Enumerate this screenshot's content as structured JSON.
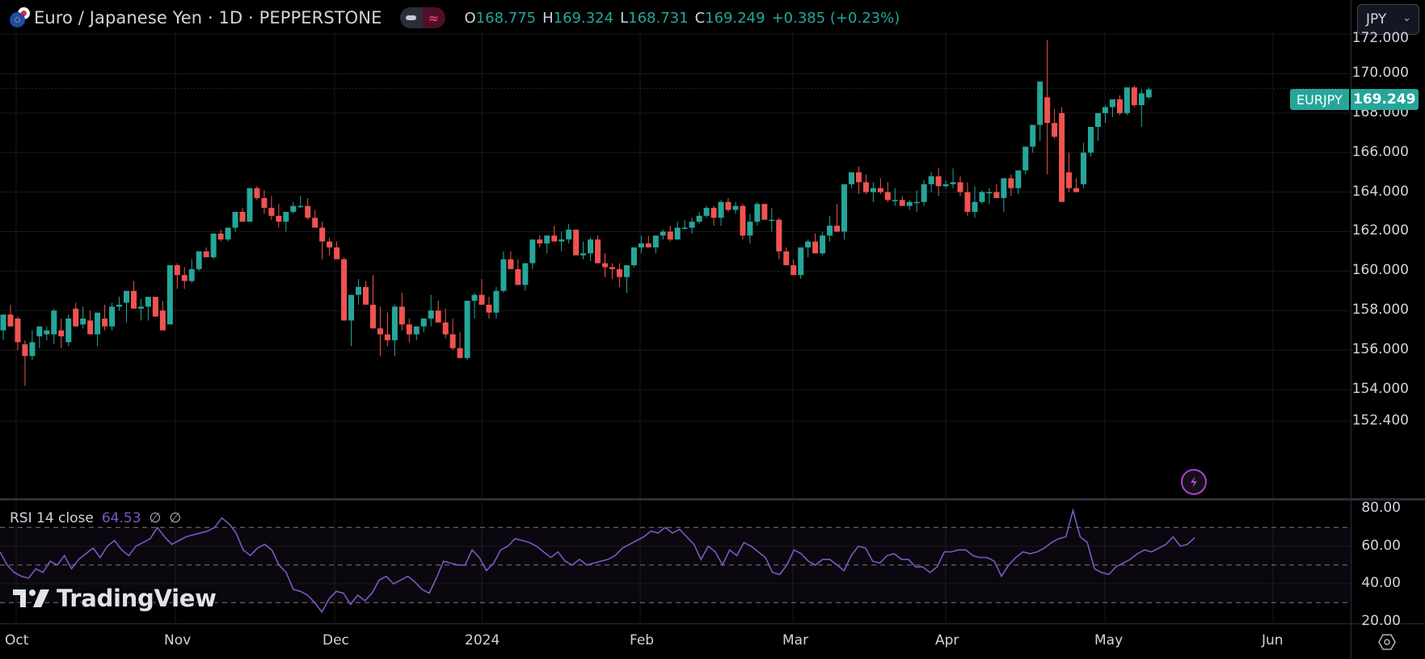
{
  "header": {
    "symbol_title": "Euro / Japanese Yen · 1D · PEPPERSTONE",
    "symbol_icon": "eur-jpy-flags-icon",
    "ohlc": {
      "open_key": "O",
      "open": "168.775",
      "high_key": "H",
      "high": "169.324",
      "low_key": "L",
      "low": "168.731",
      "close_key": "C",
      "close": "169.249",
      "change": "+0.385 (+0.23%)"
    }
  },
  "currency_selector": {
    "value": "JPY"
  },
  "last_price_tag": {
    "symbol": "EURJPY",
    "price": "169.249"
  },
  "price_axis": {
    "labels": [
      "172.000",
      "170.000",
      "168.000",
      "166.000",
      "164.000",
      "162.000",
      "160.000",
      "158.000",
      "156.000",
      "154.000",
      "152.400"
    ]
  },
  "rsi": {
    "label": "RSI 14 close",
    "value": "64.53",
    "null_a": "∅",
    "null_b": "∅",
    "axis_labels": [
      "80.00",
      "60.00",
      "40.00",
      "20.00"
    ],
    "upper_band": 70,
    "middle_band": 50,
    "lower_band": 30
  },
  "time_axis": {
    "labels": [
      "Oct",
      "Nov",
      "Dec",
      "2024",
      "Feb",
      "Mar",
      "Apr",
      "May",
      "Jun"
    ]
  },
  "watermark": {
    "text": "TradingView"
  },
  "colors": {
    "up": "#26a69a",
    "down": "#ef5350",
    "rsi_line": "#7e57c2",
    "background": "#000000",
    "grid": "#1a1a1a"
  },
  "chart_data": [
    {
      "type": "candlestick",
      "title": "Euro / Japanese Yen · 1D · PEPPERSTONE",
      "xlabel": "",
      "ylabel": "JPY",
      "ylim": [
        151.8,
        172.5
      ],
      "x_ticks": [
        "Oct",
        "Nov",
        "Dec",
        "2024",
        "Feb",
        "Mar",
        "Apr",
        "May",
        "Jun"
      ],
      "y_ticks": [
        152.4,
        154,
        156,
        158,
        160,
        162,
        164,
        166,
        168,
        170,
        172
      ],
      "grid": true,
      "ohlc": [
        [
          157.0,
          157.6,
          156.5,
          157.8
        ],
        [
          157.8,
          158.3,
          157.3,
          157.2
        ],
        [
          157.6,
          157.7,
          156.0,
          156.4
        ],
        [
          156.3,
          156.5,
          154.2,
          155.7
        ],
        [
          155.7,
          157.0,
          155.5,
          156.4
        ],
        [
          156.7,
          157.2,
          156.1,
          157.2
        ],
        [
          156.8,
          157.2,
          156.5,
          157.0
        ],
        [
          156.8,
          158.1,
          156.3,
          158.0
        ],
        [
          157.0,
          157.6,
          156.1,
          156.7
        ],
        [
          156.4,
          157.8,
          156.2,
          157.6
        ],
        [
          158.1,
          158.4,
          157.9,
          157.2
        ],
        [
          157.3,
          158.2,
          157.1,
          157.6
        ],
        [
          157.5,
          158.0,
          157.1,
          156.8
        ],
        [
          156.8,
          157.8,
          156.2,
          157.9
        ],
        [
          157.6,
          158.3,
          157.0,
          157.2
        ],
        [
          157.2,
          158.4,
          157.0,
          158.2
        ],
        [
          158.2,
          158.7,
          158.0,
          158.3
        ],
        [
          158.4,
          158.7,
          157.4,
          159.0
        ],
        [
          159.0,
          159.5,
          158.6,
          158.1
        ],
        [
          158.1,
          158.6,
          157.5,
          158.2
        ],
        [
          158.2,
          158.5,
          157.5,
          158.7
        ],
        [
          158.7,
          158.7,
          157.9,
          157.7
        ],
        [
          158.0,
          158.5,
          157.4,
          157.0
        ],
        [
          157.3,
          159.0,
          157.3,
          160.3
        ],
        [
          160.3,
          160.4,
          159.1,
          159.8
        ],
        [
          159.8,
          160.2,
          159.1,
          159.5
        ],
        [
          159.5,
          160.6,
          159.4,
          160.1
        ],
        [
          160.1,
          161.0,
          160.0,
          161.0
        ],
        [
          161.0,
          161.2,
          160.9,
          160.7
        ],
        [
          160.7,
          161.8,
          160.6,
          161.9
        ],
        [
          161.9,
          162.1,
          161.5,
          161.6
        ],
        [
          161.6,
          162.2,
          161.5,
          162.2
        ],
        [
          162.2,
          162.6,
          162.0,
          163.0
        ],
        [
          163.0,
          163.2,
          162.6,
          162.5
        ],
        [
          162.5,
          163.8,
          162.5,
          164.2
        ],
        [
          164.2,
          164.3,
          163.6,
          163.7
        ],
        [
          163.7,
          164.1,
          162.9,
          163.2
        ],
        [
          163.2,
          163.8,
          162.6,
          162.8
        ],
        [
          162.8,
          163.4,
          162.2,
          162.5
        ],
        [
          162.5,
          162.9,
          162.0,
          163.0
        ],
        [
          163.0,
          163.5,
          162.9,
          163.3
        ],
        [
          163.3,
          163.8,
          163.2,
          163.3
        ],
        [
          163.3,
          163.7,
          162.6,
          162.7
        ],
        [
          162.7,
          163.1,
          162.4,
          162.2
        ],
        [
          162.2,
          162.5,
          160.6,
          161.5
        ],
        [
          161.5,
          161.7,
          160.8,
          161.2
        ],
        [
          161.2,
          161.5,
          160.6,
          160.6
        ],
        [
          160.6,
          160.7,
          157.5,
          157.5
        ],
        [
          157.5,
          158.6,
          156.2,
          158.8
        ],
        [
          158.8,
          159.6,
          158.3,
          159.2
        ],
        [
          159.2,
          159.5,
          158.3,
          158.3
        ],
        [
          158.3,
          159.8,
          157.7,
          157.1
        ],
        [
          157.1,
          158.2,
          155.7,
          156.8
        ],
        [
          156.8,
          157.9,
          156.2,
          156.5
        ],
        [
          156.5,
          158.3,
          155.7,
          158.2
        ],
        [
          158.2,
          158.9,
          157.0,
          157.3
        ],
        [
          157.3,
          157.6,
          156.4,
          156.8
        ],
        [
          156.8,
          157.0,
          156.5,
          157.2
        ],
        [
          157.2,
          157.5,
          156.9,
          157.6
        ],
        [
          157.6,
          158.8,
          157.2,
          158.0
        ],
        [
          158.0,
          158.5,
          157.6,
          157.4
        ],
        [
          157.4,
          158.1,
          156.6,
          156.8
        ],
        [
          156.8,
          157.6,
          156.0,
          156.1
        ],
        [
          156.1,
          156.9,
          155.6,
          155.6
        ],
        [
          155.6,
          157.1,
          155.5,
          158.5
        ],
        [
          158.5,
          158.9,
          157.6,
          158.8
        ],
        [
          158.8,
          159.6,
          158.5,
          158.3
        ],
        [
          158.3,
          158.7,
          157.6,
          157.9
        ],
        [
          157.9,
          159.2,
          157.6,
          159.0
        ],
        [
          159.0,
          161.0,
          158.9,
          160.6
        ],
        [
          160.6,
          161.0,
          160.3,
          160.1
        ],
        [
          160.1,
          160.6,
          159.6,
          159.3
        ],
        [
          159.3,
          160.3,
          159.0,
          160.4
        ],
        [
          160.4,
          161.3,
          160.1,
          161.6
        ],
        [
          161.6,
          161.8,
          161.2,
          161.4
        ],
        [
          161.4,
          161.8,
          160.9,
          161.8
        ],
        [
          161.8,
          162.3,
          161.5,
          161.5
        ],
        [
          161.5,
          162.0,
          161.0,
          161.6
        ],
        [
          161.6,
          162.4,
          161.4,
          162.1
        ],
        [
          162.1,
          162.1,
          160.9,
          160.8
        ],
        [
          160.8,
          161.5,
          160.6,
          160.9
        ],
        [
          160.9,
          161.7,
          160.5,
          161.6
        ],
        [
          161.6,
          161.8,
          160.7,
          160.4
        ],
        [
          160.4,
          160.9,
          159.7,
          160.2
        ],
        [
          160.2,
          160.4,
          159.6,
          160.1
        ],
        [
          160.1,
          160.4,
          159.2,
          159.7
        ],
        [
          159.7,
          160.3,
          158.9,
          160.3
        ],
        [
          160.3,
          161.0,
          160.2,
          161.2
        ],
        [
          161.2,
          161.8,
          160.9,
          161.4
        ],
        [
          161.4,
          161.8,
          161.2,
          161.2
        ],
        [
          161.2,
          161.7,
          160.9,
          161.8
        ],
        [
          161.8,
          162.1,
          161.6,
          162.0
        ],
        [
          162.0,
          162.3,
          161.5,
          161.6
        ],
        [
          161.6,
          162.5,
          161.6,
          162.2
        ],
        [
          162.2,
          162.6,
          162.1,
          162.2
        ],
        [
          162.2,
          162.7,
          161.9,
          162.5
        ],
        [
          162.5,
          163.0,
          162.4,
          162.8
        ],
        [
          162.8,
          163.3,
          162.7,
          163.2
        ],
        [
          163.2,
          163.3,
          162.3,
          162.7
        ],
        [
          162.7,
          163.6,
          162.3,
          163.5
        ],
        [
          163.5,
          163.7,
          163.0,
          163.1
        ],
        [
          163.1,
          163.5,
          162.9,
          163.3
        ],
        [
          163.3,
          163.4,
          161.6,
          161.8
        ],
        [
          161.8,
          162.9,
          161.4,
          162.5
        ],
        [
          162.5,
          163.5,
          162.3,
          163.4
        ],
        [
          163.4,
          163.4,
          162.6,
          162.6
        ],
        [
          162.6,
          163.2,
          162.0,
          162.6
        ],
        [
          162.6,
          162.7,
          160.6,
          161.0
        ],
        [
          161.0,
          161.2,
          160.3,
          160.3
        ],
        [
          160.3,
          160.6,
          159.8,
          159.8
        ],
        [
          159.8,
          160.9,
          159.6,
          161.2
        ],
        [
          161.2,
          161.6,
          160.7,
          161.5
        ],
        [
          161.5,
          161.9,
          161.2,
          160.9
        ],
        [
          160.9,
          162.0,
          160.8,
          161.8
        ],
        [
          161.8,
          162.8,
          161.5,
          162.3
        ],
        [
          162.3,
          163.4,
          162.2,
          162.0
        ],
        [
          162.0,
          162.4,
          161.6,
          164.4
        ],
        [
          164.4,
          164.6,
          164.2,
          165.0
        ],
        [
          165.0,
          165.3,
          163.9,
          164.5
        ],
        [
          164.5,
          164.9,
          163.9,
          164.0
        ],
        [
          164.0,
          164.5,
          163.5,
          164.2
        ],
        [
          164.2,
          164.7,
          163.9,
          164.0
        ],
        [
          164.0,
          164.5,
          163.5,
          163.6
        ],
        [
          163.6,
          164.2,
          163.3,
          163.6
        ],
        [
          163.6,
          163.8,
          163.3,
          163.3
        ],
        [
          163.3,
          163.6,
          163.1,
          163.5
        ],
        [
          163.5,
          164.1,
          163.0,
          163.5
        ],
        [
          163.5,
          164.6,
          163.3,
          164.4
        ],
        [
          164.4,
          165.0,
          164.0,
          164.8
        ],
        [
          164.8,
          165.2,
          163.8,
          164.3
        ],
        [
          164.3,
          164.6,
          164.2,
          164.4
        ],
        [
          164.4,
          165.2,
          164.2,
          164.5
        ],
        [
          164.5,
          164.8,
          163.8,
          164.0
        ],
        [
          164.0,
          164.5,
          162.8,
          163.0
        ],
        [
          163.0,
          164.3,
          162.7,
          163.5
        ],
        [
          163.5,
          164.1,
          163.4,
          164.0
        ],
        [
          164.0,
          164.2,
          163.4,
          164.0
        ],
        [
          164.0,
          164.4,
          163.8,
          163.7
        ],
        [
          163.7,
          164.5,
          163.0,
          164.7
        ],
        [
          164.7,
          164.9,
          163.8,
          164.2
        ],
        [
          164.2,
          164.7,
          163.9,
          165.1
        ],
        [
          165.1,
          165.8,
          164.9,
          166.3
        ],
        [
          166.3,
          167.3,
          166.0,
          167.4
        ],
        [
          167.4,
          169.5,
          166.6,
          169.6
        ],
        [
          168.8,
          171.7,
          164.9,
          167.5
        ],
        [
          167.5,
          168.2,
          166.7,
          166.8
        ],
        [
          168.0,
          168.3,
          164.2,
          163.5
        ],
        [
          165.0,
          166.0,
          164.0,
          164.2
        ],
        [
          164.2,
          164.7,
          164.0,
          164.0
        ],
        [
          164.4,
          166.5,
          164.2,
          166.0
        ],
        [
          166.0,
          166.5,
          165.8,
          167.3
        ],
        [
          167.3,
          167.7,
          166.6,
          168.0
        ],
        [
          168.0,
          168.4,
          167.5,
          168.3
        ],
        [
          168.3,
          168.4,
          167.8,
          168.7
        ],
        [
          168.7,
          168.9,
          167.9,
          168.0
        ],
        [
          168.0,
          169.3,
          167.9,
          169.3
        ],
        [
          169.3,
          169.4,
          168.3,
          168.4
        ],
        [
          168.4,
          169.2,
          167.3,
          169.0
        ],
        [
          168.8,
          169.3,
          168.7,
          169.2
        ]
      ]
    },
    {
      "type": "line",
      "title": "RSI 14 close",
      "ylim": [
        18,
        85
      ],
      "y_ticks": [
        20,
        40,
        60,
        80
      ],
      "bands": [
        30,
        50,
        70
      ],
      "last_value": 64.53,
      "values": [
        57,
        50,
        46,
        44,
        43,
        48,
        46,
        52,
        50,
        55,
        48,
        53,
        56,
        59,
        54,
        60,
        63,
        58,
        55,
        60,
        62,
        64,
        70,
        65,
        61,
        63,
        65,
        66,
        67,
        68,
        70,
        75,
        72,
        67,
        58,
        55,
        59,
        61,
        58,
        50,
        46,
        37,
        36,
        34,
        30,
        25,
        32,
        36,
        35,
        29,
        34,
        31,
        35,
        42,
        44,
        40,
        42,
        44,
        41,
        37,
        35,
        43,
        52,
        51,
        50,
        50,
        58,
        54,
        47,
        51,
        58,
        60,
        64,
        63,
        62,
        60,
        57,
        54,
        57,
        52,
        50,
        53,
        50,
        51,
        52,
        53,
        55,
        59,
        61,
        63,
        65,
        68,
        67,
        70,
        67,
        69,
        65,
        61,
        53,
        60,
        57,
        50,
        58,
        55,
        62,
        60,
        57,
        54,
        46,
        45,
        50,
        58,
        56,
        52,
        50,
        53,
        53,
        50,
        47,
        55,
        60,
        59,
        52,
        51,
        55,
        56,
        53,
        53,
        49,
        49,
        46,
        49,
        57,
        57,
        58,
        58,
        55,
        54,
        54,
        52,
        44,
        50,
        54,
        57,
        56,
        57,
        59,
        62,
        64,
        65,
        79,
        65,
        62,
        48,
        46,
        45,
        49,
        51,
        53,
        56,
        58,
        57,
        59,
        61,
        65,
        60,
        61,
        64.5
      ]
    }
  ]
}
